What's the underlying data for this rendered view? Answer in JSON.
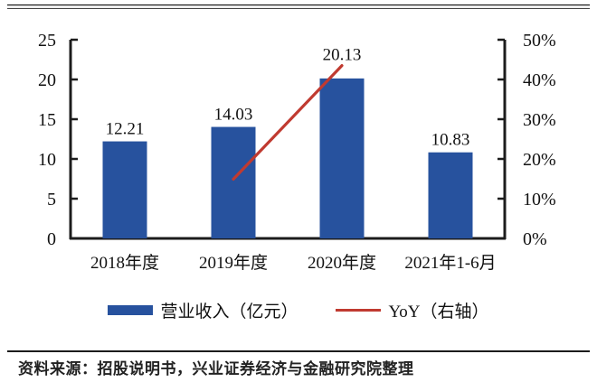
{
  "page": {
    "source_note": "资料来源：招股说明书，兴业证券经济与金融研究院整理"
  },
  "colors": {
    "bar_blue": "#27529E",
    "line_red": "#C03A30",
    "axis_black": "#1c1c1c",
    "text": "#111111"
  },
  "chart_data": {
    "type": "bar",
    "title": "",
    "categories": [
      "2018年度",
      "2019年度",
      "2020年度",
      "2021年1-6月"
    ],
    "bar_series": {
      "name": "营业收入（亿元）",
      "values": [
        12.21,
        14.03,
        20.13,
        10.83
      ],
      "data_labels": [
        "12.21",
        "14.03",
        "20.13",
        "10.83"
      ],
      "color": "#27529E",
      "axis": "left"
    },
    "line_series": {
      "name": "YoY（右轴）",
      "color": "#C03A30",
      "axis": "right",
      "points": [
        {
          "category_index": 1,
          "category": "2019年度",
          "value": 14.9
        },
        {
          "category_index": 2,
          "category": "2020年度",
          "value": 43.5
        }
      ]
    },
    "left_axis": {
      "min": 0,
      "max": 25,
      "step": 5,
      "tick_labels": [
        "0",
        "5",
        "10",
        "15",
        "20",
        "25"
      ]
    },
    "right_axis": {
      "min": 0,
      "max": 50,
      "step": 10,
      "tick_labels": [
        "0%",
        "10%",
        "20%",
        "30%",
        "40%",
        "50%"
      ]
    },
    "legend": {
      "position": "bottom",
      "entries": [
        {
          "label": "营业收入（亿元）",
          "type": "bar",
          "color": "#27529E"
        },
        {
          "label": "YoY（右轴）",
          "type": "line",
          "color": "#C03A30"
        }
      ]
    },
    "grid": false
  }
}
